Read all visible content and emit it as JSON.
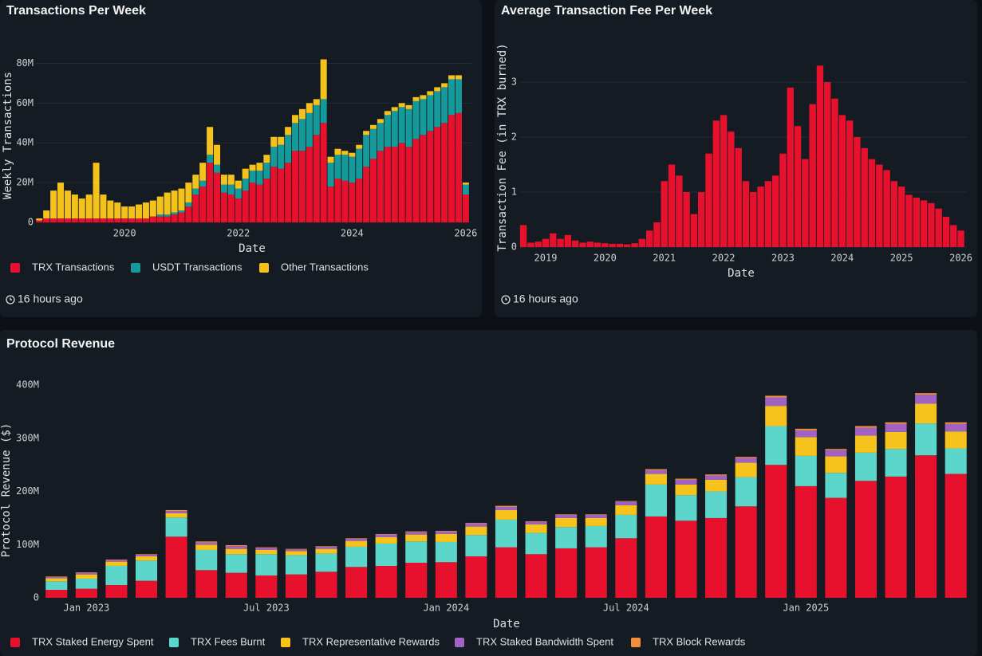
{
  "chart_data": [
    {
      "type": "bar",
      "title": "Transactions Per Week",
      "x_label": "Date",
      "y_label": "Weekly Transactions",
      "footer": "16 hours ago",
      "stacked": true,
      "grid": true,
      "x": [
        2018.5,
        2018.625,
        2018.75,
        2018.875,
        2019.0,
        2019.125,
        2019.25,
        2019.375,
        2019.5,
        2019.625,
        2019.75,
        2019.875,
        2020.0,
        2020.125,
        2020.25,
        2020.375,
        2020.5,
        2020.625,
        2020.75,
        2020.875,
        2021.0,
        2021.125,
        2021.25,
        2021.375,
        2021.5,
        2021.625,
        2021.75,
        2021.875,
        2022.0,
        2022.125,
        2022.25,
        2022.375,
        2022.5,
        2022.625,
        2022.75,
        2022.875,
        2023.0,
        2023.125,
        2023.25,
        2023.375,
        2023.5,
        2023.625,
        2023.75,
        2023.875,
        2024.0,
        2024.125,
        2024.25,
        2024.375,
        2024.5,
        2024.625,
        2024.75,
        2024.875,
        2025.0,
        2025.125,
        2025.25,
        2025.375,
        2025.5,
        2025.625,
        2025.75,
        2025.875,
        2026.0
      ],
      "series": [
        {
          "name": "TRX Transactions",
          "color": "#e8112d",
          "values": [
            1,
            2,
            2,
            2,
            2,
            2,
            2,
            2,
            2,
            2,
            2,
            2,
            2,
            2,
            2,
            2,
            3,
            3,
            3,
            4,
            5,
            8,
            14,
            18,
            30,
            25,
            15,
            14,
            12,
            16,
            20,
            19,
            22,
            28,
            27,
            30,
            36,
            36,
            38,
            44,
            50,
            18,
            22,
            21,
            20,
            22,
            28,
            32,
            36,
            38,
            38,
            40,
            38,
            42,
            44,
            46,
            48,
            50,
            54,
            55,
            14
          ]
        },
        {
          "name": "USDT Transactions",
          "color": "#159a9c",
          "values": [
            0,
            0,
            0,
            0,
            0,
            0,
            0,
            0,
            0,
            0,
            0,
            0,
            0,
            0,
            0,
            0,
            0,
            1,
            1,
            1,
            1,
            2,
            3,
            3,
            4,
            4,
            4,
            5,
            5,
            6,
            6,
            7,
            8,
            10,
            12,
            14,
            14,
            16,
            17,
            15,
            12,
            12,
            12,
            13,
            13,
            15,
            16,
            15,
            14,
            16,
            18,
            18,
            19,
            19,
            18,
            18,
            18,
            18,
            18,
            17,
            5
          ]
        },
        {
          "name": "Other Transactions",
          "color": "#f5c21b",
          "values": [
            1,
            4,
            14,
            18,
            14,
            12,
            10,
            12,
            28,
            12,
            9,
            8,
            6,
            6,
            7,
            8,
            8,
            9,
            11,
            11,
            11,
            10,
            7,
            9,
            14,
            10,
            5,
            5,
            4,
            5,
            3,
            4,
            4,
            5,
            4,
            4,
            4,
            5,
            5,
            3,
            20,
            3,
            3,
            2,
            2,
            2,
            2,
            2,
            2,
            2,
            2,
            2,
            2,
            2,
            2,
            2,
            2,
            2,
            2,
            2,
            1
          ]
        }
      ],
      "xlim": [
        2018.44,
        2026.1
      ],
      "xticks": [
        2020,
        2022,
        2024,
        2026
      ],
      "ylim": [
        0,
        85
      ],
      "yticks": [
        0,
        {
          "value": 20,
          "label": "20M"
        },
        {
          "value": 40,
          "label": "40M"
        },
        {
          "value": 60,
          "label": "60M"
        },
        {
          "value": 80,
          "label": "80M"
        }
      ]
    },
    {
      "type": "bar",
      "title": "Average Transaction Fee Per Week",
      "x_label": "Date",
      "y_label": "Transaction Fee (in TRX burned)",
      "footer": "16 hours ago",
      "color": "#e8112d",
      "grid": true,
      "x": [
        2018.625,
        2018.75,
        2018.875,
        2019.0,
        2019.125,
        2019.25,
        2019.375,
        2019.5,
        2019.625,
        2019.75,
        2019.875,
        2020.0,
        2020.125,
        2020.25,
        2020.375,
        2020.5,
        2020.625,
        2020.75,
        2020.875,
        2021.0,
        2021.125,
        2021.25,
        2021.375,
        2021.5,
        2021.625,
        2021.75,
        2021.875,
        2022.0,
        2022.125,
        2022.25,
        2022.375,
        2022.5,
        2022.625,
        2022.75,
        2022.875,
        2023.0,
        2023.125,
        2023.25,
        2023.375,
        2023.5,
        2023.625,
        2023.75,
        2023.875,
        2024.0,
        2024.125,
        2024.25,
        2024.375,
        2024.5,
        2024.625,
        2024.75,
        2024.875,
        2025.0,
        2025.125,
        2025.25,
        2025.375,
        2025.5,
        2025.625,
        2025.75,
        2025.875,
        2026.0
      ],
      "values": [
        0.4,
        0.08,
        0.1,
        0.15,
        0.25,
        0.15,
        0.22,
        0.12,
        0.08,
        0.1,
        0.08,
        0.07,
        0.06,
        0.06,
        0.05,
        0.07,
        0.15,
        0.3,
        0.45,
        1.2,
        1.5,
        1.3,
        1.0,
        0.6,
        1.0,
        1.7,
        2.3,
        2.4,
        2.1,
        1.8,
        1.2,
        1.0,
        1.1,
        1.2,
        1.3,
        1.7,
        2.9,
        2.2,
        1.6,
        2.6,
        3.3,
        3.0,
        2.7,
        2.4,
        2.3,
        2.0,
        1.8,
        1.6,
        1.5,
        1.4,
        1.2,
        1.1,
        0.95,
        0.9,
        0.85,
        0.8,
        0.7,
        0.55,
        0.4,
        0.3
      ],
      "xlim": [
        2018.57,
        2026.1
      ],
      "xticks": [
        2019,
        2020,
        2021,
        2022,
        2023,
        2024,
        2025,
        2026
      ],
      "ylim": [
        0,
        3.5
      ],
      "yticks": [
        0,
        1,
        2,
        3
      ]
    },
    {
      "type": "bar",
      "title": "Protocol Revenue",
      "x_label": "Date",
      "y_label": "Protocol Revenue ($)",
      "stacked": true,
      "grid": false,
      "categories": [
        null,
        "Jan 2023",
        null,
        null,
        null,
        null,
        null,
        "Jul 2023",
        null,
        null,
        null,
        null,
        null,
        "Jan 2024",
        null,
        null,
        null,
        null,
        null,
        "Jul 2024",
        null,
        null,
        null,
        null,
        null,
        "Jan 2025",
        null,
        null,
        null,
        null,
        null
      ],
      "series": [
        {
          "name": "TRX Staked Energy Spent",
          "color": "#e8112d",
          "values": [
            15,
            17,
            24,
            32,
            115,
            52,
            47,
            42,
            44,
            49,
            58,
            60,
            66,
            67,
            78,
            95,
            82,
            93,
            95,
            112,
            153,
            145,
            150,
            172,
            250,
            210,
            188,
            220,
            228,
            268,
            233
          ]
        },
        {
          "name": "TRX Fees Burnt",
          "color": "#5cd6cb",
          "values": [
            16,
            19,
            36,
            38,
            36,
            38,
            35,
            40,
            36,
            34,
            38,
            42,
            40,
            38,
            40,
            52,
            40,
            40,
            40,
            44,
            60,
            48,
            50,
            55,
            73,
            57,
            47,
            53,
            52,
            60,
            48
          ]
        },
        {
          "name": "TRX Representative Rewards",
          "color": "#f6c31c",
          "values": [
            6,
            8,
            8,
            8,
            8,
            10,
            10,
            8,
            8,
            9,
            11,
            12,
            13,
            15,
            16,
            18,
            16,
            17,
            15,
            18,
            20,
            20,
            22,
            27,
            38,
            35,
            31,
            32,
            32,
            37,
            32
          ]
        },
        {
          "name": "TRX Staked Bandwidth Spent",
          "color": "#a063c4",
          "values": [
            2,
            3,
            3,
            3,
            4,
            4,
            5,
            4,
            3,
            4,
            4,
            5,
            5,
            5,
            6,
            6,
            5,
            6,
            6,
            7,
            7,
            9,
            8,
            9,
            16,
            13,
            12,
            15,
            15,
            17,
            14
          ]
        },
        {
          "name": "TRX Block Rewards",
          "color": "#f28f3b",
          "values": [
            1,
            1,
            1,
            1,
            2,
            2,
            2,
            1,
            1,
            1,
            1,
            1,
            1,
            1,
            1,
            2,
            1,
            1,
            1,
            1,
            2,
            2,
            2,
            2,
            3,
            3,
            2,
            3,
            3,
            3,
            3
          ]
        }
      ],
      "ylim": [
        0,
        410
      ],
      "yticks": [
        0,
        {
          "value": 100,
          "label": "100M"
        },
        {
          "value": 200,
          "label": "200M"
        },
        {
          "value": 300,
          "label": "300M"
        },
        {
          "value": 400,
          "label": "400M"
        }
      ]
    }
  ]
}
